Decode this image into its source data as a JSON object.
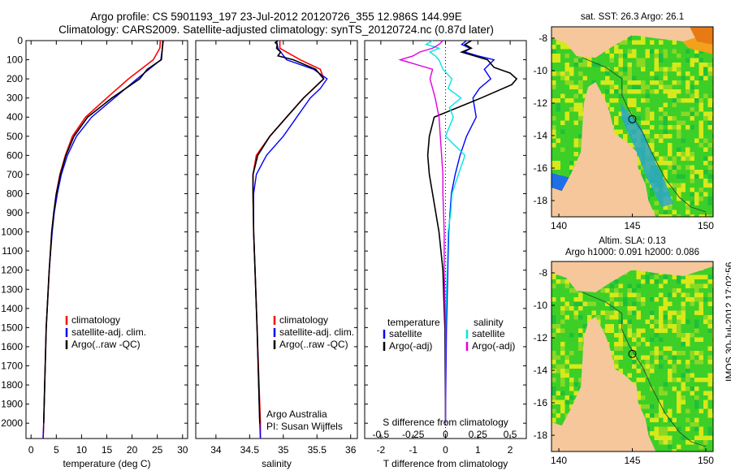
{
  "header": {
    "title_line1": "Argo profile: CS 5901193_197 23-Jul-2012 20120726_355 12.986S 144.99E",
    "title_line2": "Climatology: CARS2009. Satellite-adjusted climatology: synTS_20120724.nc (0.87d later)"
  },
  "footer_stamp": "IMOS 30-Jul-2012 17:02:56",
  "colors": {
    "climatology": "#ff0000",
    "satellite": "#0000ff",
    "argo": "#000000",
    "satellite_salinity": "#00e5e5",
    "argo_salinity": "#e000e0",
    "land": "#f5c79a",
    "sea_green": "#3ccf28",
    "sea_yellow": "#d8e81a",
    "deep_blue": "#0a2a9a",
    "mid_blue": "#1f6fe8"
  },
  "chart_data": [
    {
      "type": "line",
      "id": "temperature",
      "xlabel": "temperature (deg C)",
      "ylabel": "",
      "xlim": [
        -1,
        31
      ],
      "ylim": [
        0,
        2080
      ],
      "x_ticks": [
        "0",
        "5",
        "10",
        "15",
        "20",
        "25",
        "30"
      ],
      "y_ticks": [
        "0",
        "100",
        "200",
        "300",
        "400",
        "500",
        "600",
        "700",
        "800",
        "900",
        "1000",
        "1100",
        "1200",
        "1300",
        "1400",
        "1500",
        "1600",
        "1700",
        "1800",
        "1900",
        "2000"
      ],
      "legend": [
        "climatology",
        "satellite-adj. clim.",
        "Argo(..raw -QC)"
      ],
      "series": [
        {
          "name": "climatology",
          "color": "red",
          "depth": [
            0,
            40,
            100,
            200,
            300,
            400,
            500,
            600,
            700,
            800,
            900,
            1000,
            1200,
            1500,
            2000,
            2080
          ],
          "values": [
            25.6,
            25.5,
            24.2,
            19.3,
            15.0,
            10.8,
            8.2,
            6.8,
            5.7,
            5.0,
            4.5,
            4.1,
            3.6,
            3.0,
            2.5,
            2.4
          ]
        },
        {
          "name": "satellite-adj. clim.",
          "color": "blue",
          "depth": [
            0,
            40,
            100,
            200,
            300,
            400,
            500,
            600,
            700,
            800,
            900,
            1000,
            1200,
            1500,
            2000,
            2080
          ],
          "values": [
            26.2,
            26.0,
            25.7,
            21.0,
            16.5,
            12.0,
            9.0,
            7.2,
            6.0,
            5.2,
            4.6,
            4.2,
            3.6,
            3.0,
            2.5,
            2.4
          ]
        },
        {
          "name": "Argo(..raw -QC)",
          "color": "black",
          "depth": [
            0,
            40,
            100,
            150,
            200,
            300,
            400,
            500,
            600,
            700,
            800,
            900,
            1000,
            1200,
            1500,
            1800,
            2000
          ],
          "values": [
            26.1,
            26.0,
            25.8,
            23.0,
            21.5,
            16.0,
            11.2,
            8.5,
            6.9,
            5.8,
            5.0,
            4.5,
            4.1,
            3.6,
            3.0,
            2.7,
            2.5
          ]
        }
      ]
    },
    {
      "type": "line",
      "id": "salinity",
      "xlabel": "salinity",
      "ylabel": "",
      "xlim": [
        33.7,
        36.1
      ],
      "ylim": [
        0,
        2080
      ],
      "x_ticks": [
        "34",
        "34.5",
        "35",
        "35.5",
        "36"
      ],
      "legend": [
        "climatology",
        "satellite-adj. clim.",
        "Argo(..raw -QC)"
      ],
      "annotation": [
        "Argo Australia",
        "PI: Susan Wijffels"
      ],
      "series": [
        {
          "name": "climatology",
          "color": "red",
          "depth": [
            0,
            40,
            100,
            150,
            200,
            250,
            300,
            400,
            500,
            600,
            700,
            800,
            1000,
            1200,
            1500,
            2000,
            2080
          ],
          "values": [
            34.95,
            34.95,
            35.25,
            35.55,
            35.6,
            35.45,
            35.3,
            35.05,
            34.8,
            34.6,
            34.55,
            34.55,
            34.56,
            34.58,
            34.61,
            34.66,
            34.66
          ]
        },
        {
          "name": "satellite-adj. clim.",
          "color": "blue",
          "depth": [
            0,
            40,
            100,
            150,
            200,
            250,
            300,
            400,
            500,
            600,
            700,
            800,
            1000,
            1200,
            1500,
            2000,
            2080
          ],
          "values": [
            34.9,
            34.92,
            35.05,
            35.45,
            35.65,
            35.55,
            35.4,
            35.2,
            35.0,
            34.75,
            34.6,
            34.56,
            34.56,
            34.58,
            34.61,
            34.65,
            34.66
          ]
        },
        {
          "name": "Argo(..raw -QC)",
          "color": "black",
          "depth": [
            0,
            10,
            20,
            40,
            60,
            80,
            100,
            150,
            200,
            250,
            300,
            400,
            500,
            600,
            700,
            800,
            1000,
            1200,
            1500,
            2000
          ],
          "values": [
            34.92,
            34.88,
            34.91,
            34.9,
            34.96,
            34.92,
            35.15,
            35.48,
            35.6,
            35.45,
            35.3,
            35.05,
            34.8,
            34.62,
            34.55,
            34.55,
            34.56,
            34.58,
            34.61,
            34.65
          ]
        }
      ]
    },
    {
      "type": "line",
      "id": "differences",
      "xlabel": "T difference from climatology",
      "top_xlabel": "S difference from climatology",
      "xlim": [
        -2.5,
        2.5
      ],
      "ylim": [
        0,
        2080
      ],
      "x_ticks": [
        "-2",
        "-1",
        "0",
        "1",
        "2"
      ],
      "top_ticks": [
        "-0.5",
        "-0.25",
        "0",
        "0.25",
        "0.5"
      ],
      "legend_headers": [
        "temperature",
        "salinity"
      ],
      "legend": [
        "satellite",
        "Argo(-adj)",
        "satellite",
        "Argo(-adj)"
      ],
      "series": [
        {
          "name": "temperature satellite",
          "color": "blue",
          "depth": [
            0,
            20,
            40,
            60,
            80,
            100,
            150,
            200,
            250,
            300,
            400,
            500,
            600,
            700,
            800,
            1000,
            1500,
            2000
          ],
          "values": [
            0.65,
            0.5,
            0.75,
            0.6,
            1.0,
            1.5,
            1.2,
            1.4,
            1.05,
            0.85,
            0.95,
            0.65,
            0.45,
            0.3,
            0.18,
            0.1,
            0.03,
            0.0
          ]
        },
        {
          "name": "temperature Argo(-adj)",
          "color": "black",
          "depth": [
            0,
            20,
            40,
            60,
            80,
            100,
            140,
            170,
            200,
            230,
            300,
            400,
            500,
            600,
            700,
            800,
            1000,
            1200,
            1500,
            2000
          ],
          "values": [
            0.8,
            0.6,
            0.8,
            0.5,
            0.9,
            1.3,
            1.5,
            2.0,
            2.2,
            2.05,
            1.1,
            -0.35,
            -0.5,
            -0.55,
            -0.5,
            -0.4,
            -0.2,
            -0.08,
            -0.02,
            0.0
          ]
        },
        {
          "name": "salinity satellite",
          "color": "cyan",
          "depth": [
            0,
            20,
            40,
            60,
            80,
            100,
            150,
            200,
            250,
            300,
            350,
            400,
            500,
            600,
            700,
            800,
            900,
            1000,
            1500,
            2000
          ],
          "values": [
            -0.1,
            -0.15,
            -0.05,
            -0.12,
            -0.08,
            -0.05,
            -0.02,
            0.05,
            0.02,
            0.12,
            0.03,
            0.06,
            0.0,
            0.15,
            0.1,
            0.05,
            0.04,
            0.02,
            0.0,
            0.0
          ]
        },
        {
          "name": "salinity Argo(-adj)",
          "color": "magenta",
          "depth": [
            0,
            20,
            40,
            60,
            80,
            100,
            150,
            200,
            300,
            400,
            500,
            600,
            700,
            800,
            1000,
            1200,
            1500,
            2000
          ],
          "values": [
            -0.02,
            -0.05,
            -0.1,
            -0.2,
            -0.25,
            -0.35,
            -0.1,
            -0.12,
            -0.08,
            -0.05,
            -0.04,
            -0.03,
            -0.02,
            -0.02,
            -0.01,
            -0.01,
            0.0,
            0.0
          ]
        }
      ]
    },
    {
      "type": "heatmap",
      "id": "sst-map",
      "title": "sat. SST: 26.3 Argo: 26.1",
      "x_ticks": [
        "140",
        "145",
        "150"
      ],
      "y_ticks": [
        "-8",
        "-10",
        "-12",
        "-14",
        "-16",
        "-18"
      ],
      "xlim": [
        139.5,
        150.5
      ],
      "ylim": [
        -19,
        -7.3
      ],
      "marker": {
        "lon": 145.0,
        "lat": -12.986
      }
    },
    {
      "type": "heatmap",
      "id": "sla-map",
      "title": "Altim. SLA: 0.13",
      "subtitle": "Argo h1000: 0.091 h2000: 0.086",
      "x_ticks": [
        "140",
        "145",
        "150"
      ],
      "y_ticks": [
        "-8",
        "-10",
        "-12",
        "-14",
        "-16",
        "-18"
      ],
      "xlim": [
        139.5,
        150.5
      ],
      "ylim": [
        -19,
        -7.3
      ],
      "marker": {
        "lon": 145.0,
        "lat": -12.986
      }
    }
  ]
}
